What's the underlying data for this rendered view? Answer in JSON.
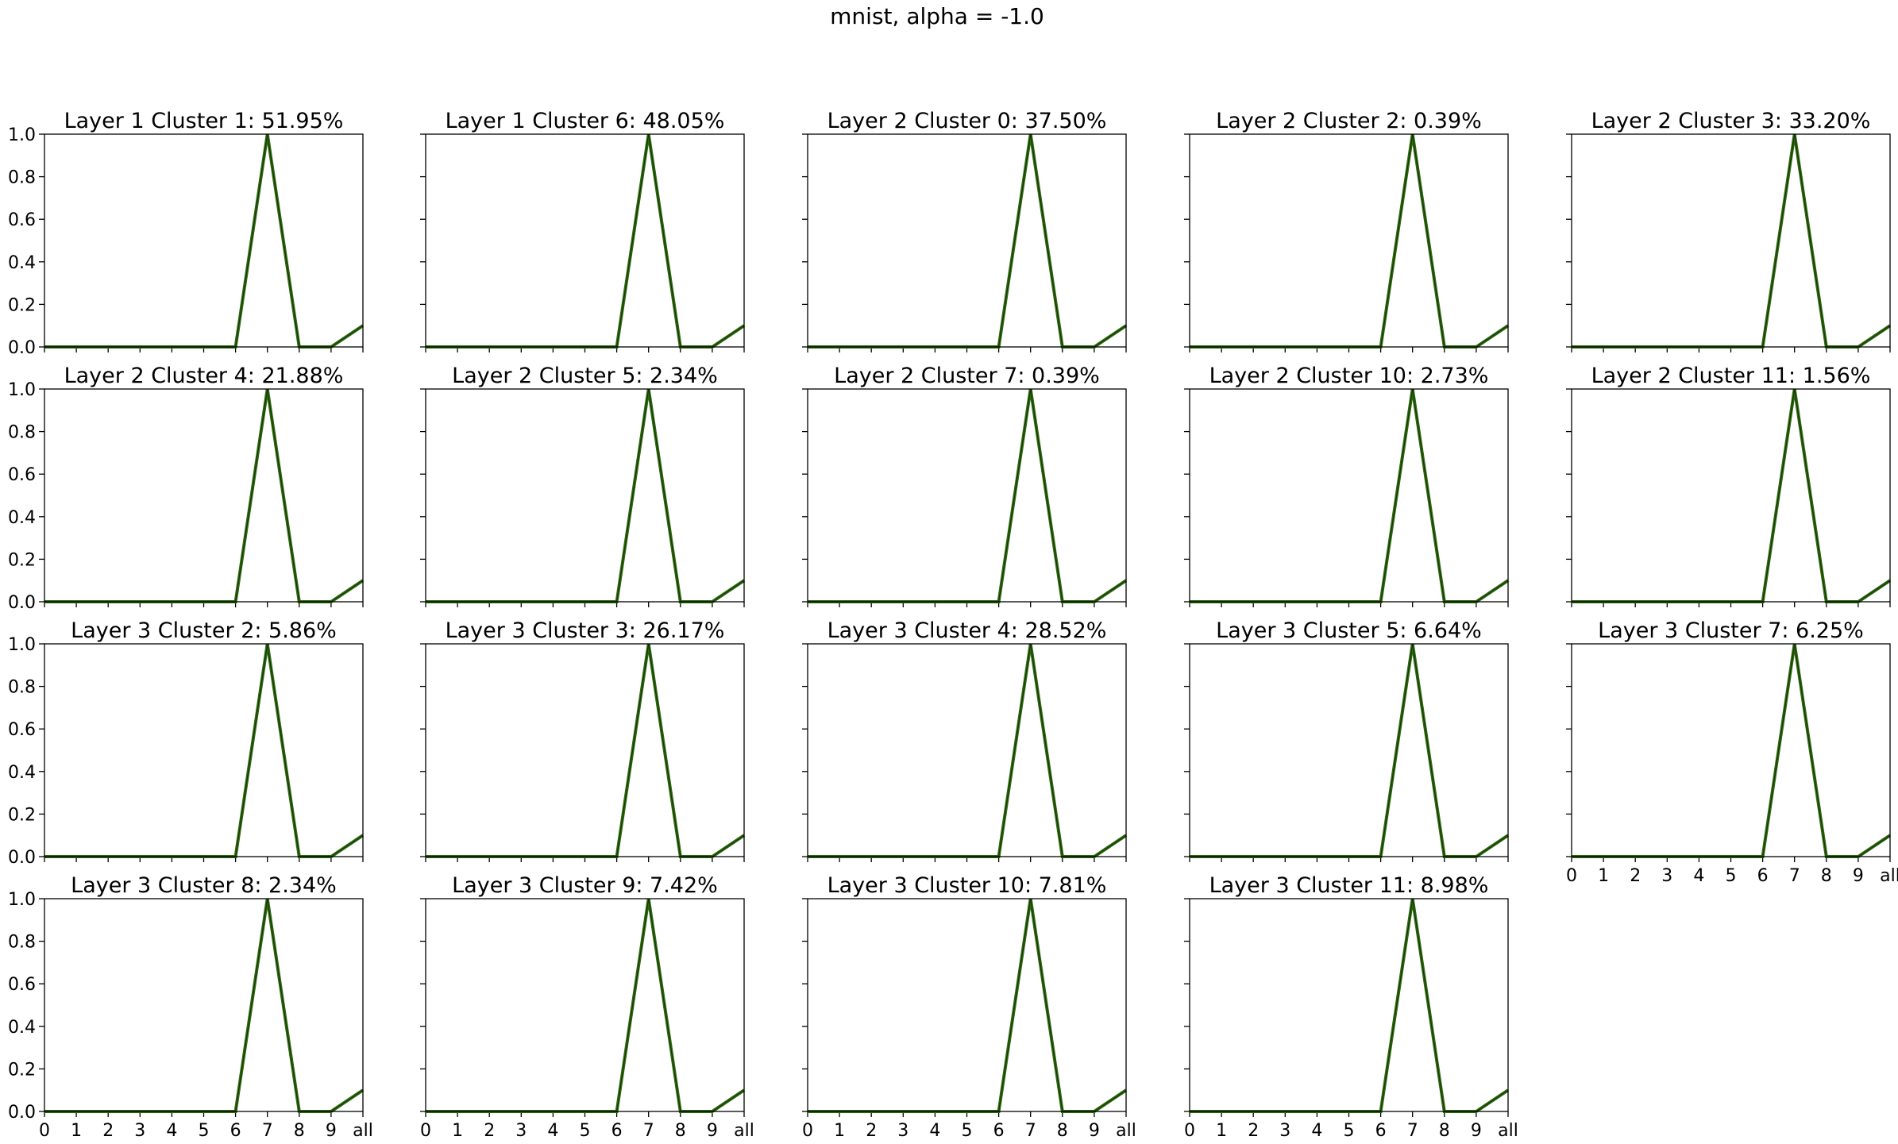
{
  "figure": {
    "suptitle": "mnist, alpha = -1.0"
  },
  "style": {
    "line_color": "#2d6a0f",
    "line_overlay_color": "#000000",
    "axes_color": "#000000",
    "background": "#ffffff"
  },
  "chart_data": {
    "type": "line",
    "grid": false,
    "shared_y": true,
    "shared_x": true,
    "x_categories": [
      "0",
      "1",
      "2",
      "3",
      "4",
      "5",
      "6",
      "7",
      "8",
      "9",
      "all"
    ],
    "ylim": [
      0.0,
      1.0
    ],
    "yticks": [
      "0.0",
      "0.2",
      "0.4",
      "0.6",
      "0.8",
      "1.0"
    ],
    "default_values": [
      0,
      0,
      0,
      0,
      0,
      0,
      0,
      1,
      0,
      0,
      0.1
    ],
    "panels": [
      {
        "title": "Layer 1 Cluster 1: 51.95%",
        "values": [
          0,
          0,
          0,
          0,
          0,
          0,
          0,
          1,
          0,
          0,
          0.1
        ]
      },
      {
        "title": "Layer 1 Cluster 6: 48.05%",
        "values": [
          0,
          0,
          0,
          0,
          0,
          0,
          0,
          1,
          0,
          0,
          0.1
        ]
      },
      {
        "title": "Layer 2 Cluster 0: 37.50%",
        "values": [
          0,
          0,
          0,
          0,
          0,
          0,
          0,
          1,
          0,
          0,
          0.1
        ]
      },
      {
        "title": "Layer 2 Cluster 2: 0.39%",
        "values": [
          0,
          0,
          0,
          0,
          0,
          0,
          0,
          1,
          0,
          0,
          0.1
        ]
      },
      {
        "title": "Layer 2 Cluster 3: 33.20%",
        "values": [
          0,
          0,
          0,
          0,
          0,
          0,
          0,
          1,
          0,
          0,
          0.1
        ]
      },
      {
        "title": "Layer 2 Cluster 4: 21.88%",
        "values": [
          0,
          0,
          0,
          0,
          0,
          0,
          0,
          1,
          0,
          0,
          0.1
        ]
      },
      {
        "title": "Layer 2 Cluster 5: 2.34%",
        "values": [
          0,
          0,
          0,
          0,
          0,
          0,
          0,
          1,
          0,
          0,
          0.1
        ]
      },
      {
        "title": "Layer 2 Cluster 7: 0.39%",
        "values": [
          0,
          0,
          0,
          0,
          0,
          0,
          0,
          1,
          0,
          0,
          0.1
        ]
      },
      {
        "title": "Layer 2 Cluster 10: 2.73%",
        "values": [
          0,
          0,
          0,
          0,
          0,
          0,
          0,
          1,
          0,
          0,
          0.1
        ]
      },
      {
        "title": "Layer 2 Cluster 11: 1.56%",
        "values": [
          0,
          0,
          0,
          0,
          0,
          0,
          0,
          1,
          0,
          0,
          0.1
        ]
      },
      {
        "title": "Layer 3 Cluster 2: 5.86%",
        "values": [
          0,
          0,
          0,
          0,
          0,
          0,
          0,
          1,
          0,
          0,
          0.1
        ]
      },
      {
        "title": "Layer 3 Cluster 3: 26.17%",
        "values": [
          0,
          0,
          0,
          0,
          0,
          0,
          0,
          1,
          0,
          0,
          0.1
        ]
      },
      {
        "title": "Layer 3 Cluster 4: 28.52%",
        "values": [
          0,
          0,
          0,
          0,
          0,
          0,
          0,
          1,
          0,
          0,
          0.1
        ]
      },
      {
        "title": "Layer 3 Cluster 5: 6.64%",
        "values": [
          0,
          0,
          0,
          0,
          0,
          0,
          0,
          1,
          0,
          0,
          0.1
        ]
      },
      {
        "title": "Layer 3 Cluster 7: 6.25%",
        "values": [
          0,
          0,
          0,
          0,
          0,
          0,
          0,
          1,
          0,
          0,
          0.1
        ]
      },
      {
        "title": "Layer 3 Cluster 8: 2.34%",
        "values": [
          0,
          0,
          0,
          0,
          0,
          0,
          0,
          1,
          0,
          0,
          0.1
        ]
      },
      {
        "title": "Layer 3 Cluster 9: 7.42%",
        "values": [
          0,
          0,
          0,
          0,
          0,
          0,
          0,
          1,
          0,
          0,
          0.1
        ]
      },
      {
        "title": "Layer 3 Cluster 10: 7.81%",
        "values": [
          0,
          0,
          0,
          0,
          0,
          0,
          0,
          1,
          0,
          0,
          0.1
        ]
      },
      {
        "title": "Layer 3 Cluster 11: 8.98%",
        "values": [
          0,
          0,
          0,
          0,
          0,
          0,
          0,
          1,
          0,
          0,
          0.1
        ]
      }
    ]
  }
}
